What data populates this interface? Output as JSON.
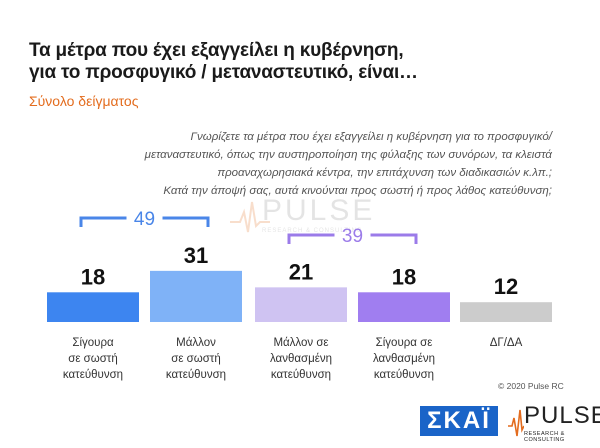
{
  "title_line1": "Τα μέτρα που έχει εξαγγείλει η κυβέρνηση,",
  "title_line2": "για το προσφυγικό / μεταναστευτικό, είναι…",
  "subtitle": "Σύνολο δείγματος",
  "question": [
    "Γνωρίζετε τα μέτρα που έχει εξαγγείλει η κυβέρνηση για το προσφυγικό/",
    "μεταναστευτικό, όπως την αυστηροποίηση της φύλαξης των συνόρων, τα κλειστά",
    "προαναχωρησιακά κέντρα, την επιτάχυνση των διαδικασιών κ.λπ.;",
    "Κατά την άποψή σας, αυτά κινούνται προς σωστή ή προς λάθος κατεύθυνση;"
  ],
  "watermark": {
    "text": "PULSE",
    "sub": "RESEARCH & CONSULTING"
  },
  "chart_data": {
    "type": "bar",
    "categories": [
      [
        "Σίγουρα",
        "σε σωστή",
        "κατεύθυνση"
      ],
      [
        "Μάλλον",
        "σε σωστή",
        "κατεύθυνση"
      ],
      [
        "Μάλλον σε",
        "λανθασμένη",
        "κατεύθυνση"
      ],
      [
        "Σίγουρα σε",
        "λανθασμένη",
        "κατεύθυνση"
      ],
      [
        "ΔΓ/ΔΑ"
      ]
    ],
    "values": [
      18,
      31,
      21,
      18,
      12
    ],
    "colors": [
      "#3d85f0",
      "#7fb2f7",
      "#cfc3f2",
      "#a07ef0",
      "#cccccc"
    ],
    "brackets": [
      {
        "label": "49",
        "from": 0,
        "to": 1,
        "color": "#4a86e8"
      },
      {
        "label": "39",
        "from": 2,
        "to": 3,
        "color": "#9b7be9"
      }
    ]
  },
  "footer": "© 2020 Pulse RC",
  "logos": {
    "skai": "ΣΚΑΪ",
    "pulse": "PULSE",
    "pulse_sub": "RESEARCH & CONSULTING"
  }
}
